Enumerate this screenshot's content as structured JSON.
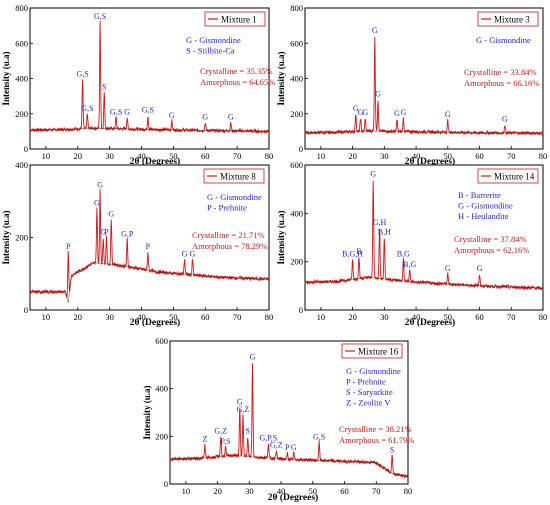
{
  "chart_data": [
    {
      "type": "line",
      "legend": "Mixture 1",
      "xlabel": "2θ (Degrees)",
      "ylabel": "Intensity (u.a)",
      "xlim": [
        5,
        80
      ],
      "ylim": [
        0,
        800
      ],
      "xticks": [
        10,
        20,
        30,
        40,
        50,
        60,
        70,
        80
      ],
      "yticks": [
        0,
        200,
        400,
        600,
        800
      ],
      "key": [
        "G - Gismondine",
        "S - Stilbite-Ca"
      ],
      "crystalline": "Crystalline = 35.35%",
      "amorphous": "Amorphous = 64.65%",
      "baseline": [
        [
          5,
          108
        ],
        [
          15,
          110
        ],
        [
          25,
          118
        ],
        [
          40,
          112
        ],
        [
          60,
          105
        ],
        [
          80,
          100
        ]
      ],
      "peaks": [
        {
          "x": 21.5,
          "y": 395,
          "label": "G,S"
        },
        {
          "x": 23.0,
          "y": 200,
          "label": "G,S"
        },
        {
          "x": 27.0,
          "y": 720,
          "label": "G,S"
        },
        {
          "x": 28.3,
          "y": 320,
          "label": "S"
        },
        {
          "x": 32.0,
          "y": 180,
          "label": "G,S"
        },
        {
          "x": 35.5,
          "y": 180,
          "label": "G"
        },
        {
          "x": 42.0,
          "y": 190,
          "label": "G,S"
        },
        {
          "x": 49.5,
          "y": 160,
          "label": "G"
        },
        {
          "x": 60.0,
          "y": 150,
          "label": "G"
        },
        {
          "x": 68.0,
          "y": 150,
          "label": "G"
        }
      ]
    },
    {
      "type": "line",
      "legend": "Mixture 3",
      "xlabel": "2θ (Degrees)",
      "ylabel": "Intensity (u.a)",
      "xlim": [
        5,
        80
      ],
      "ylim": [
        0,
        800
      ],
      "xticks": [
        10,
        20,
        30,
        40,
        50,
        60,
        70,
        80
      ],
      "yticks": [
        0,
        200,
        400,
        600,
        800
      ],
      "key": [
        "G - Gismondine"
      ],
      "crystalline": "Crystalline = 33.84%",
      "amorphous": "Amorphous = 66.16%",
      "baseline": [
        [
          5,
          92
        ],
        [
          15,
          95
        ],
        [
          25,
          102
        ],
        [
          40,
          98
        ],
        [
          60,
          92
        ],
        [
          80,
          90
        ]
      ],
      "peaks": [
        {
          "x": 21.0,
          "y": 200,
          "label": "G"
        },
        {
          "x": 22.5,
          "y": 175,
          "label": "G"
        },
        {
          "x": 24.0,
          "y": 175,
          "label": "G"
        },
        {
          "x": 27.0,
          "y": 640,
          "label": "G"
        },
        {
          "x": 28.0,
          "y": 280,
          "label": "G"
        },
        {
          "x": 34.0,
          "y": 170,
          "label": "G"
        },
        {
          "x": 36.0,
          "y": 175,
          "label": "G"
        },
        {
          "x": 50.0,
          "y": 165,
          "label": "G"
        },
        {
          "x": 68.0,
          "y": 140,
          "label": "G"
        }
      ]
    },
    {
      "type": "line",
      "legend": "Mixture 8",
      "xlabel": "2θ (Degrees)",
      "ylabel": "Intensity (u.a)",
      "xlim": [
        5,
        80
      ],
      "ylim": [
        0,
        400
      ],
      "xticks": [
        10,
        20,
        30,
        40,
        50,
        60,
        70,
        80
      ],
      "yticks": [
        0,
        200,
        400
      ],
      "key": [
        "G - Gismondine",
        "P - Prehnite"
      ],
      "crystalline": "Crystalline = 21.71%",
      "amorphous": "Amorphous = 78.29%",
      "baseline": [
        [
          5,
          50
        ],
        [
          16,
          50
        ],
        [
          17,
          20
        ],
        [
          18,
          95
        ],
        [
          25,
          130
        ],
        [
          32,
          125
        ],
        [
          45,
          105
        ],
        [
          65,
          90
        ],
        [
          80,
          85
        ]
      ],
      "peaks": [
        {
          "x": 17.0,
          "y": 160,
          "label": "P"
        },
        {
          "x": 26.0,
          "y": 280,
          "label": "G"
        },
        {
          "x": 27.0,
          "y": 330,
          "label": "G"
        },
        {
          "x": 28.0,
          "y": 200,
          "label": "G"
        },
        {
          "x": 29.0,
          "y": 200,
          "label": "P"
        },
        {
          "x": 30.5,
          "y": 250,
          "label": "G"
        },
        {
          "x": 35.5,
          "y": 195,
          "label": "G,P"
        },
        {
          "x": 42.0,
          "y": 160,
          "label": "P"
        },
        {
          "x": 53.5,
          "y": 140,
          "label": "G"
        },
        {
          "x": 56.0,
          "y": 140,
          "label": "G"
        }
      ]
    },
    {
      "type": "line",
      "legend": "Mixture 14",
      "xlabel": "2θ (Degrees)",
      "ylabel": "Intensity (u.a)",
      "xlim": [
        5,
        80
      ],
      "ylim": [
        0,
        600
      ],
      "xticks": [
        10,
        20,
        30,
        40,
        50,
        60,
        70,
        80
      ],
      "yticks": [
        0,
        200,
        400,
        600
      ],
      "key": [
        "B - Barrerite",
        "G - Gismondine",
        "H - Heulandite"
      ],
      "crystalline": "Crystalline = 37.84%",
      "amorphous": "Amorphous = 62.16%",
      "baseline": [
        [
          5,
          115
        ],
        [
          15,
          118
        ],
        [
          25,
          135
        ],
        [
          40,
          115
        ],
        [
          60,
          100
        ],
        [
          80,
          90
        ]
      ],
      "peaks": [
        {
          "x": 20.0,
          "y": 210,
          "label": "B,G,H"
        },
        {
          "x": 22.0,
          "y": 220,
          "label": "B"
        },
        {
          "x": 26.5,
          "y": 540,
          "label": "G"
        },
        {
          "x": 28.5,
          "y": 340,
          "label": "G,H"
        },
        {
          "x": 30.0,
          "y": 300,
          "label": "B,H"
        },
        {
          "x": 36.0,
          "y": 210,
          "label": "B,G"
        },
        {
          "x": 38.0,
          "y": 165,
          "label": "B,G"
        },
        {
          "x": 50.0,
          "y": 150,
          "label": "G"
        },
        {
          "x": 60.0,
          "y": 150,
          "label": "G"
        }
      ]
    },
    {
      "type": "line",
      "legend": "Mixture 16",
      "xlabel": "2θ (Degrees)",
      "ylabel": "Intensity (u.a)",
      "xlim": [
        5,
        80
      ],
      "ylim": [
        0,
        600
      ],
      "xticks": [
        10,
        20,
        30,
        40,
        50,
        60,
        70,
        80
      ],
      "yticks": [
        0,
        200,
        400,
        600
      ],
      "key": [
        "G - Gismondine",
        "P - Prehnite",
        "S - Saryarkite",
        "Z - Zeolite V"
      ],
      "crystalline": "Crystalline = 38.21%",
      "amorphous": "Amorphous = 61.79%",
      "baseline": [
        [
          5,
          105
        ],
        [
          15,
          108
        ],
        [
          25,
          120
        ],
        [
          40,
          105
        ],
        [
          60,
          95
        ],
        [
          70,
          90
        ],
        [
          75,
          45
        ],
        [
          80,
          30
        ]
      ],
      "peaks": [
        {
          "x": 16.0,
          "y": 165,
          "label": "Z"
        },
        {
          "x": 21.0,
          "y": 200,
          "label": "G,Z"
        },
        {
          "x": 22.5,
          "y": 155,
          "label": "P,S"
        },
        {
          "x": 27.0,
          "y": 320,
          "label": "G"
        },
        {
          "x": 28.0,
          "y": 290,
          "label": "G,Z"
        },
        {
          "x": 29.5,
          "y": 200,
          "label": "S"
        },
        {
          "x": 31.0,
          "y": 510,
          "label": "G"
        },
        {
          "x": 36.0,
          "y": 170,
          "label": "G,P,S"
        },
        {
          "x": 38.5,
          "y": 140,
          "label": "G,Z"
        },
        {
          "x": 42.0,
          "y": 130,
          "label": "P"
        },
        {
          "x": 44.0,
          "y": 130,
          "label": "G"
        },
        {
          "x": 52.0,
          "y": 175,
          "label": "G,S"
        },
        {
          "x": 75.0,
          "y": 120,
          "label": "S"
        }
      ]
    }
  ]
}
